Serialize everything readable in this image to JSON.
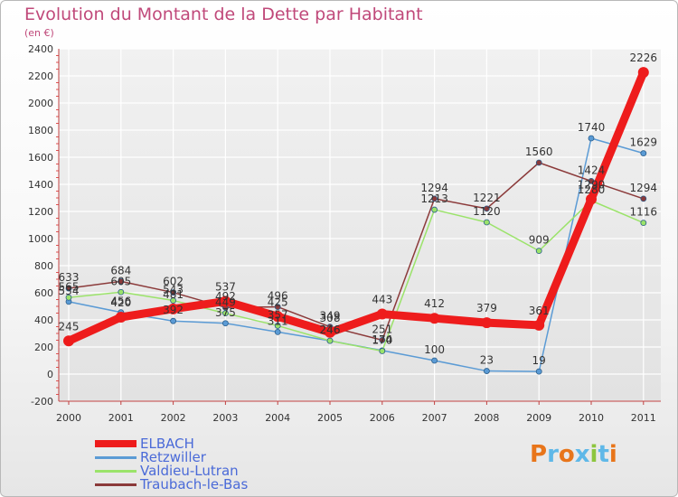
{
  "header": {
    "title": "Evolution du Montant de la Dette par Habitant",
    "subtitle": "(en €)"
  },
  "brand": {
    "text": "Proxiti",
    "colors": [
      "#e8751a",
      "#5fb8e8",
      "#e8751a",
      "#5fb8e8",
      "#8dc63f",
      "#5fb8e8",
      "#e8751a"
    ]
  },
  "chart_data": {
    "type": "line",
    "categories": [
      "2000",
      "2001",
      "2002",
      "2003",
      "2004",
      "2005",
      "2006",
      "2007",
      "2008",
      "2009",
      "2010",
      "2011"
    ],
    "ylim": [
      -200,
      2400
    ],
    "yticks": [
      "-200",
      "0",
      "200",
      "400",
      "600",
      "800",
      "1000",
      "1200",
      "1400",
      "1600",
      "1800",
      "2000",
      "2200",
      "2400"
    ],
    "grid": true,
    "legend_position": "bottom-left",
    "series": [
      {
        "name": "Retzwiller",
        "color": "#5b9bd5",
        "values": [
          534,
          456,
          392,
          375,
          311,
          246,
          174,
          100,
          23,
          19,
          1740,
          1629
        ],
        "labels": [
          "534",
          "456",
          "392",
          "375",
          "311",
          "246",
          "174",
          "100",
          "23",
          "19",
          "1740",
          "1629"
        ]
      },
      {
        "name": "Valdieu-Lutran",
        "color": "#9be36a",
        "values": [
          565,
          605,
          543,
          449,
          357,
          246,
          170,
          1213,
          1120,
          909,
          1280,
          1116
        ],
        "labels": [
          "565",
          "605",
          "543",
          "449",
          "357",
          "246",
          "170",
          "1213",
          "1120",
          "909",
          "1280",
          "1116"
        ]
      },
      {
        "name": "Traubach-le-Bas",
        "color": "#8b3a3a",
        "values": [
          633,
          684,
          602,
          492,
          496,
          349,
          251,
          1294,
          1221,
          1560,
          1424,
          1294
        ],
        "labels": [
          "633",
          "684",
          "602",
          "492",
          "496",
          "349",
          "251",
          "1294",
          "1221",
          "1560",
          "1424",
          "1294"
        ]
      },
      {
        "name": "ELBACH",
        "color": "#ee1c1c",
        "values": [
          245,
          420,
          481,
          537,
          425,
          308,
          443,
          412,
          379,
          361,
          1290,
          2226
        ],
        "labels": [
          "245",
          "420",
          "481",
          "537",
          "425",
          "308",
          "443",
          "412",
          "379",
          "361",
          "1290",
          "2226"
        ]
      }
    ]
  }
}
